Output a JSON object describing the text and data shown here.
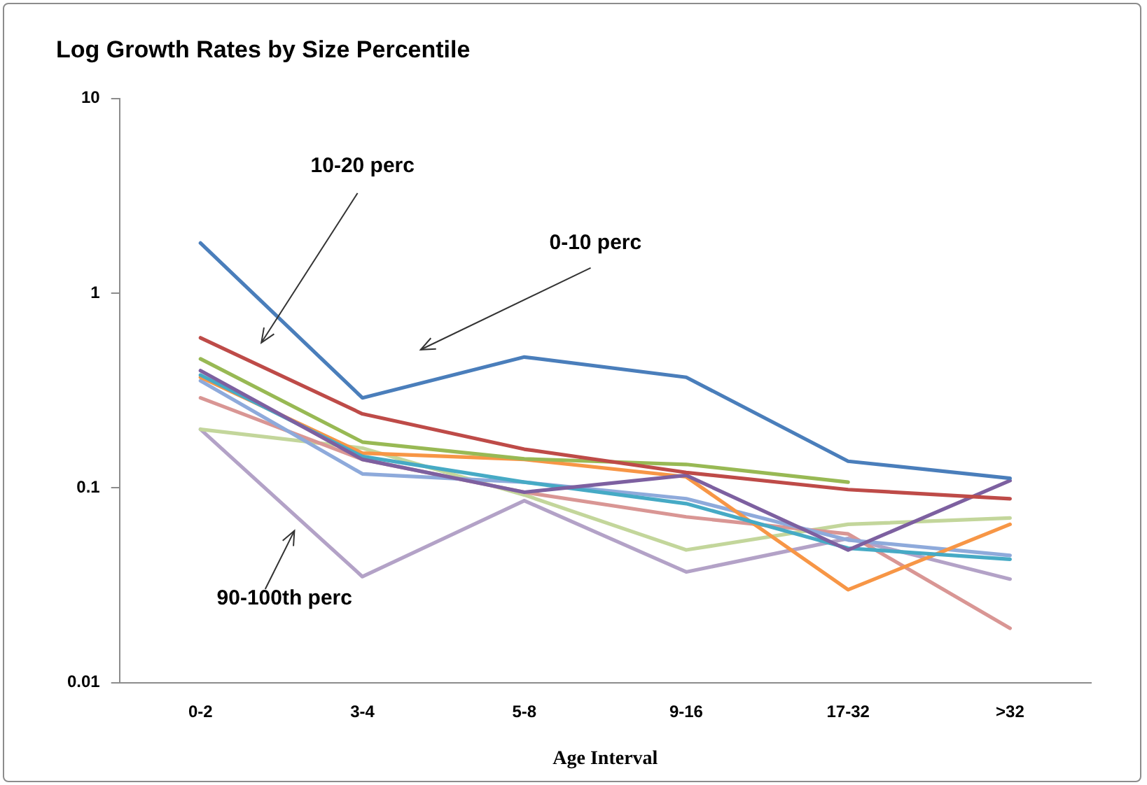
{
  "chart_data": {
    "type": "line",
    "title": "Log Growth Rates by Size Percentile",
    "xlabel": "Age Interval",
    "categories": [
      "0-2",
      "3-4",
      "5-8",
      "9-16",
      "17-32",
      ">32"
    ],
    "series": [
      {
        "color": "#4a7ebb",
        "values": [
          1.81,
          0.29,
          0.47,
          0.37,
          0.137,
          0.112
        ]
      },
      {
        "color": "#be4b48",
        "values": [
          0.59,
          0.24,
          0.158,
          0.12,
          0.098,
          0.088
        ]
      },
      {
        "color": "#98b954",
        "values": [
          0.46,
          0.172,
          0.141,
          0.132,
          0.107,
          null
        ]
      },
      {
        "color": "#7d60a0",
        "values": [
          0.4,
          0.14,
          0.095,
          0.116,
          0.048,
          0.109
        ]
      },
      {
        "color": "#46aac5",
        "values": [
          0.38,
          0.145,
          0.107,
          0.083,
          0.049,
          0.043
        ]
      },
      {
        "color": "#f79646",
        "values": [
          0.37,
          0.151,
          0.14,
          0.114,
          0.03,
          0.065
        ]
      },
      {
        "color": "#8eaadb",
        "values": [
          0.355,
          0.118,
          0.107,
          0.088,
          0.054,
          0.045
        ]
      },
      {
        "color": "#d99694",
        "values": [
          0.29,
          0.14,
          0.095,
          0.071,
          0.058,
          0.019
        ]
      },
      {
        "color": "#c3d69b",
        "values": [
          0.2,
          0.16,
          0.092,
          0.048,
          0.065,
          0.07
        ]
      },
      {
        "color": "#b3a2c7",
        "values": [
          0.2,
          0.035,
          0.086,
          0.037,
          0.055,
          0.034
        ]
      }
    ],
    "log": "y",
    "ylim": [
      0.01,
      10
    ],
    "yticks": [
      0.01,
      0.1,
      1,
      10
    ],
    "grid": false,
    "legend": false,
    "marker": "none",
    "line_style": "solid",
    "annotations": [
      "10-20 perc",
      "0-10 perc",
      "90-100th perc"
    ]
  }
}
